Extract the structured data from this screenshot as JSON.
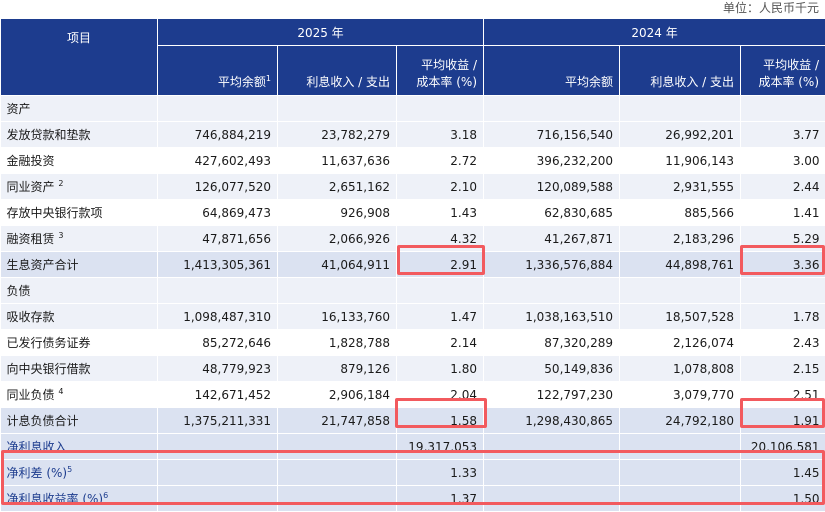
{
  "unit": "单位：人民币千元",
  "header": {
    "label": "项目",
    "years": [
      "2025 年",
      "2024 年"
    ],
    "avg_balance": "平均余额",
    "interest": "利息收入 / 支出",
    "rate_line1": "平均收益 /",
    "rate_line2": "成本率 (%)"
  },
  "sections": {
    "assets": "资产",
    "liabilities": "负债"
  },
  "assets": [
    {
      "label": "发放贷款和垫款",
      "sup": "",
      "v": [
        "746,884,219",
        "23,782,279",
        "3.18",
        "716,156,540",
        "26,992,201",
        "3.77"
      ]
    },
    {
      "label": "金融投资",
      "sup": "",
      "v": [
        "427,602,493",
        "11,637,636",
        "2.72",
        "396,232,200",
        "11,906,143",
        "3.00"
      ]
    },
    {
      "label": "同业资产",
      "sup": "2",
      "v": [
        "126,077,520",
        "2,651,162",
        "2.10",
        "120,089,588",
        "2,931,555",
        "2.44"
      ]
    },
    {
      "label": "存放中央银行款项",
      "sup": "",
      "v": [
        "64,869,473",
        "926,908",
        "1.43",
        "62,830,685",
        "885,566",
        "1.41"
      ]
    },
    {
      "label": "融资租赁",
      "sup": "3",
      "v": [
        "47,871,656",
        "2,066,926",
        "4.32",
        "41,267,871",
        "2,183,296",
        "5.29"
      ]
    }
  ],
  "assets_total": {
    "label": "生息资产合计",
    "v": [
      "1,413,305,361",
      "41,064,911",
      "2.91",
      "1,336,576,884",
      "44,898,761",
      "3.36"
    ]
  },
  "liabilities": [
    {
      "label": "吸收存款",
      "sup": "",
      "v": [
        "1,098,487,310",
        "16,133,760",
        "1.47",
        "1,038,163,510",
        "18,507,528",
        "1.78"
      ]
    },
    {
      "label": "已发行债务证券",
      "sup": "",
      "v": [
        "85,272,646",
        "1,828,788",
        "2.14",
        "87,320,289",
        "2,126,074",
        "2.43"
      ]
    },
    {
      "label": "向中央银行借款",
      "sup": "",
      "v": [
        "48,779,923",
        "879,126",
        "1.80",
        "50,149,836",
        "1,078,808",
        "2.15"
      ]
    },
    {
      "label": "同业负债",
      "sup": "4",
      "v": [
        "142,671,452",
        "2,906,184",
        "2.04",
        "122,797,230",
        "3,079,770",
        "2.51"
      ]
    }
  ],
  "liabilities_total": {
    "label": "计息负债合计",
    "v": [
      "1,375,211,331",
      "21,747,858",
      "1.58",
      "1,298,430,865",
      "24,792,180",
      "1.91"
    ]
  },
  "net_income": {
    "label": "净利息收入",
    "v2025": "19,317,053",
    "v2024": "20,106,581"
  },
  "net_spread": {
    "label": "净利差 (%)",
    "sup": "5",
    "v2025": "1.33",
    "v2024": "1.45"
  },
  "net_margin": {
    "label": "净利息收益率 (%)",
    "sup": "6",
    "v2025": "1.37",
    "v2024": "1.50"
  },
  "highlight_color": "#f25a5e",
  "header_color": "#1d3c8e"
}
